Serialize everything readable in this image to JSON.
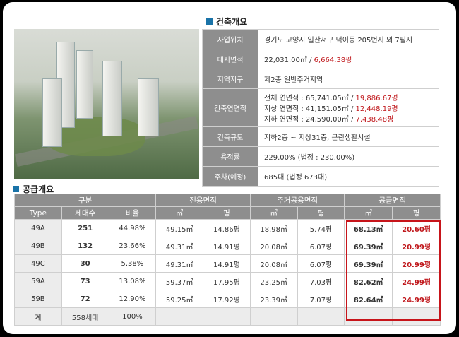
{
  "building_overview": {
    "title": "건축개요",
    "rows": [
      {
        "label": "사업위치",
        "lines": [
          {
            "text": "경기도 고양시 일산서구 덕이동 205번지 외 7필지",
            "red": ""
          }
        ]
      },
      {
        "label": "대지면적",
        "lines": [
          {
            "text": "22,031.00㎡  /  ",
            "red": "6,664.38평"
          }
        ]
      },
      {
        "label": "지역지구",
        "lines": [
          {
            "text": "제2종 일반주거지역",
            "red": ""
          }
        ]
      },
      {
        "label": "건축연면적",
        "lines": [
          {
            "text": "전체 연면적 : 65,741.05㎡   /   ",
            "red": "19,886.67평"
          },
          {
            "text": "지상 연면적 : 41,151.05㎡   /   ",
            "red": "12,448.19평"
          },
          {
            "text": "지하 연면적 : 24,590.00㎡   /   ",
            "red": "7,438.48평"
          }
        ]
      },
      {
        "label": "건축규모",
        "lines": [
          {
            "text": "지하2층 ~ 지상31층, 근린생활시설",
            "red": ""
          }
        ]
      },
      {
        "label": "용적률",
        "lines": [
          {
            "text": "229.00%  (법정 : 230.00%)",
            "red": ""
          }
        ]
      },
      {
        "label": "주차(예정)",
        "lines": [
          {
            "text": "685대 (법정 673대)",
            "red": ""
          }
        ]
      }
    ]
  },
  "supply_overview": {
    "title": "공급개요",
    "group_headers": [
      "구분",
      "전용면적",
      "주거공용면적",
      "공급면적"
    ],
    "sub_headers": [
      "Type",
      "세대수",
      "비율",
      "㎡",
      "평",
      "㎡",
      "평",
      "㎡",
      "평"
    ],
    "rows": [
      [
        "49A",
        "251",
        "44.98%",
        "49.15㎡",
        "14.86평",
        "18.98㎡",
        "5.74평",
        "68.13㎡",
        "20.60평"
      ],
      [
        "49B",
        "132",
        "23.66%",
        "49.31㎡",
        "14.91평",
        "20.08㎡",
        "6.07평",
        "69.39㎡",
        "20.99평"
      ],
      [
        "49C",
        "30",
        "5.38%",
        "49.31㎡",
        "14.91평",
        "20.08㎡",
        "6.07평",
        "69.39㎡",
        "20.99평"
      ],
      [
        "59A",
        "73",
        "13.08%",
        "59.37㎡",
        "17.95평",
        "23.25㎡",
        "7.03평",
        "82.62㎡",
        "24.99평"
      ],
      [
        "59B",
        "72",
        "12.90%",
        "59.25㎡",
        "17.92평",
        "23.39㎡",
        "7.07평",
        "82.64㎡",
        "24.99평"
      ]
    ],
    "total": [
      "계",
      "558세대",
      "100%",
      "",
      "",
      "",
      "",
      "",
      ""
    ]
  },
  "colors": {
    "accent": "#1a73a8",
    "label_bg": "#8e8e8e",
    "highlight": "#c7141a",
    "red_text": "#c0181c"
  }
}
